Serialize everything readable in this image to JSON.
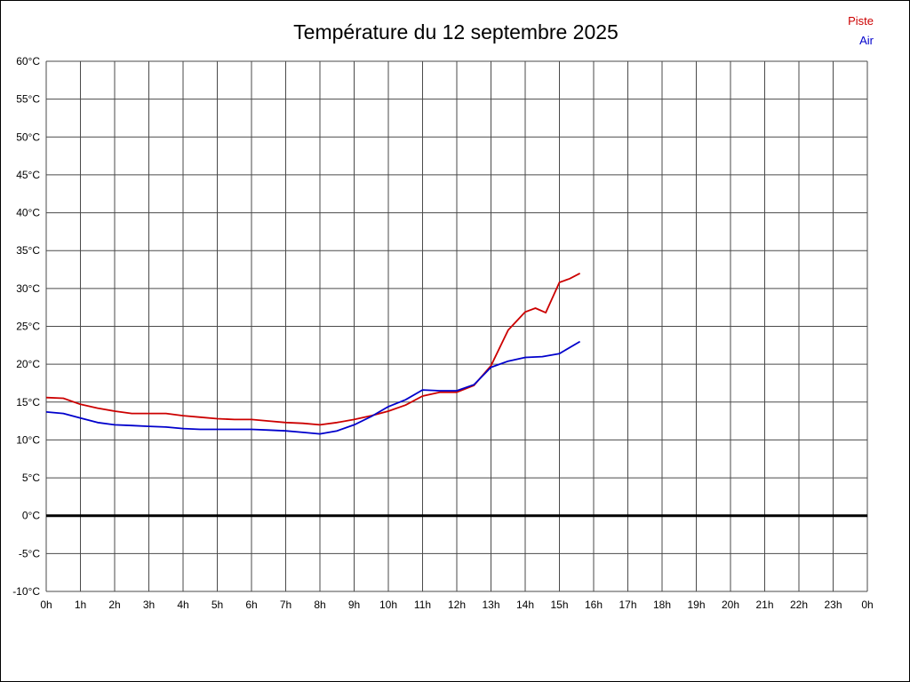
{
  "title": "Température du 12 septembre 2025",
  "legend": {
    "piste_label": "Piste",
    "air_label": "Air",
    "piste_color": "#cc0000",
    "air_color": "#0000cc"
  },
  "chart_data": {
    "type": "line",
    "title": "Température du 12 septembre 2025",
    "xlabel": "",
    "ylabel": "",
    "x_unit": "hours",
    "xlim": [
      0,
      24
    ],
    "ylim": [
      -10,
      60
    ],
    "grid": true,
    "grid_color": "#4a4a4a",
    "zero_line": true,
    "zero_line_color": "#000000",
    "legend_position": "top-right",
    "x_tick_labels": [
      "0h",
      "1h",
      "2h",
      "3h",
      "4h",
      "5h",
      "6h",
      "7h",
      "8h",
      "9h",
      "10h",
      "11h",
      "12h",
      "13h",
      "14h",
      "15h",
      "16h",
      "17h",
      "18h",
      "19h",
      "20h",
      "21h",
      "22h",
      "23h",
      "0h"
    ],
    "y_ticks": [
      -10,
      -5,
      0,
      5,
      10,
      15,
      20,
      25,
      30,
      35,
      40,
      45,
      50,
      55,
      60
    ],
    "y_tick_suffix": "°C",
    "series": [
      {
        "name": "Piste",
        "color": "#cc0000",
        "x": [
          0.0,
          0.5,
          1.0,
          1.5,
          2.0,
          2.5,
          3.0,
          3.5,
          4.0,
          4.5,
          5.0,
          5.5,
          6.0,
          6.5,
          7.0,
          7.5,
          8.0,
          8.5,
          9.0,
          9.5,
          10.0,
          10.5,
          11.0,
          11.5,
          12.0,
          12.5,
          13.0,
          13.5,
          14.0,
          14.3,
          14.6,
          15.0,
          15.3,
          15.6
        ],
        "values": [
          15.6,
          15.5,
          14.7,
          14.2,
          13.8,
          13.5,
          13.5,
          13.5,
          13.2,
          13.0,
          12.8,
          12.7,
          12.7,
          12.5,
          12.3,
          12.2,
          12.0,
          12.3,
          12.7,
          13.2,
          13.8,
          14.6,
          15.8,
          16.3,
          16.3,
          17.2,
          19.8,
          24.5,
          26.9,
          27.4,
          26.8,
          30.8,
          31.3,
          32.0
        ]
      },
      {
        "name": "Air",
        "color": "#0000cc",
        "x": [
          0.0,
          0.5,
          1.0,
          1.5,
          2.0,
          2.5,
          3.0,
          3.5,
          4.0,
          4.5,
          5.0,
          5.5,
          6.0,
          6.5,
          7.0,
          7.5,
          8.0,
          8.5,
          9.0,
          9.5,
          10.0,
          10.5,
          11.0,
          11.5,
          12.0,
          12.5,
          13.0,
          13.5,
          14.0,
          14.5,
          15.0,
          15.6
        ],
        "values": [
          13.7,
          13.5,
          12.9,
          12.3,
          12.0,
          11.9,
          11.8,
          11.7,
          11.5,
          11.4,
          11.4,
          11.4,
          11.4,
          11.3,
          11.2,
          11.0,
          10.8,
          11.2,
          12.0,
          13.1,
          14.4,
          15.3,
          16.6,
          16.5,
          16.5,
          17.3,
          19.6,
          20.4,
          20.9,
          21.0,
          21.4,
          23.0
        ]
      }
    ]
  }
}
